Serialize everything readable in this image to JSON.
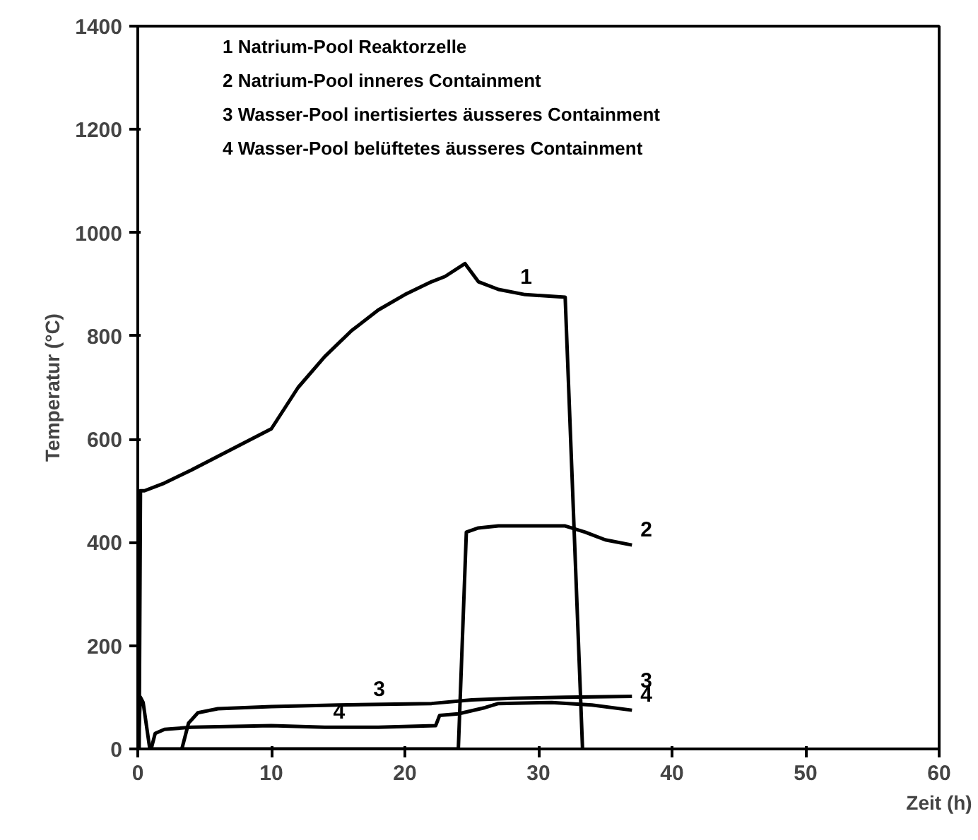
{
  "chart_data": {
    "type": "line",
    "xlabel": "Zeit (h)",
    "ylabel": "Temperatur (°C)",
    "xlim": [
      0,
      60
    ],
    "ylim": [
      0,
      1400
    ],
    "xticks": [
      0,
      10,
      20,
      30,
      40,
      50,
      60
    ],
    "yticks": [
      0,
      200,
      400,
      600,
      800,
      1000,
      1200,
      1400
    ],
    "grid": false,
    "marker": "none",
    "line_style": "solid",
    "series": [
      {
        "color": "#000000",
        "x": [
          0.1,
          0.2,
          0.5,
          2,
          4,
          7,
          10,
          12,
          14,
          16,
          18,
          20,
          22,
          23,
          24.5,
          25.5,
          27,
          29,
          32,
          33.3
        ],
        "values": [
          0,
          500,
          500,
          515,
          540,
          580,
          620,
          700,
          760,
          810,
          850,
          880,
          905,
          915,
          940,
          905,
          890,
          880,
          875,
          0
        ]
      },
      {
        "color": "#000000",
        "x": [
          0,
          0.2,
          0.4,
          0.9,
          10,
          24,
          24.6,
          25.5,
          27,
          32,
          33.5,
          35,
          37
        ],
        "values": [
          0,
          100,
          90,
          0,
          0,
          0,
          420,
          428,
          432,
          432,
          420,
          405,
          395
        ]
      },
      {
        "color": "#000000",
        "x": [
          3.3,
          3.8,
          4.5,
          6,
          10,
          15,
          22,
          25,
          28,
          32,
          37
        ],
        "values": [
          0,
          50,
          70,
          78,
          82,
          85,
          88,
          95,
          98,
          100,
          102
        ]
      },
      {
        "color": "#000000",
        "x": [
          1,
          1.3,
          2,
          4,
          10,
          14,
          18,
          22.3,
          22.6,
          24,
          26,
          27,
          31,
          34,
          37
        ],
        "values": [
          0,
          30,
          38,
          42,
          45,
          42,
          42,
          45,
          65,
          68,
          80,
          88,
          90,
          85,
          75
        ]
      }
    ],
    "annotations": [
      "1  Natrium-Pool Reaktorzelle",
      "2  Natrium-Pool inneres Containment",
      "3  Wasser-Pool inertisiertes äusseres Containment",
      "4  Wasser-Pool belüftetes äusseres Containment",
      {
        "text": "1",
        "x": 28,
        "y": 885
      },
      {
        "text": "2",
        "x": 37,
        "y": 395
      },
      {
        "text": "3",
        "x": 17,
        "y": 86
      },
      {
        "text": "4",
        "x": 14,
        "y": 42
      },
      {
        "text": "3",
        "x": 37,
        "y": 102
      },
      {
        "text": "4",
        "x": 37,
        "y": 75
      }
    ]
  }
}
